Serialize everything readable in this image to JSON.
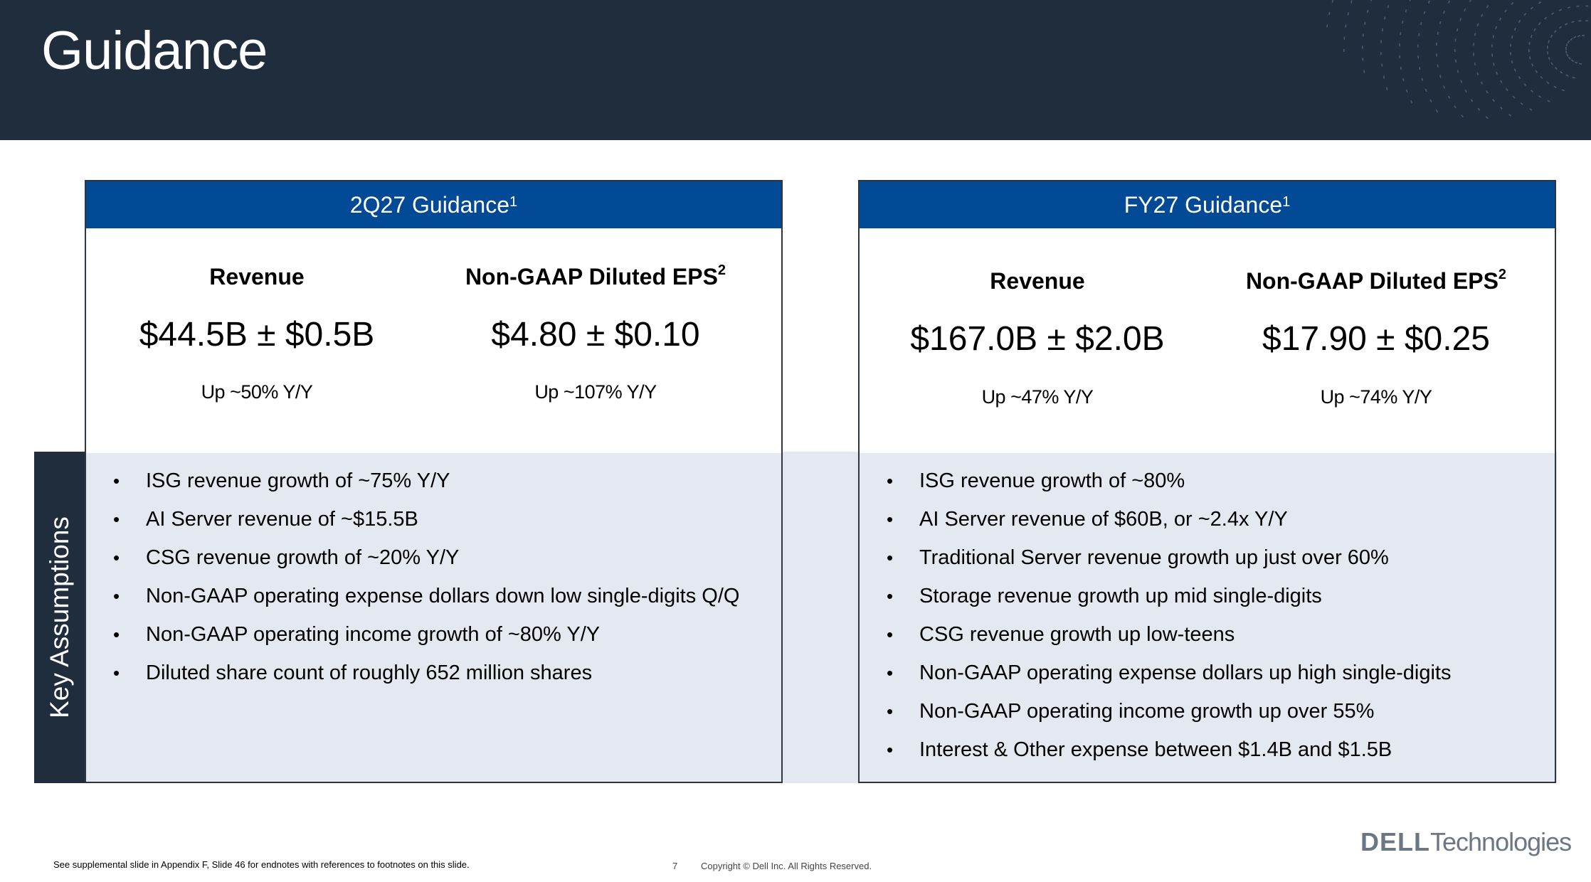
{
  "header": {
    "title": "Guidance"
  },
  "side_tab": {
    "label": "Key Assumptions"
  },
  "panels": [
    {
      "title": "2Q27 Guidance",
      "title_sup": "1",
      "metrics": [
        {
          "label": "Revenue",
          "label_sup": "",
          "value": "$44.5B ± $0.5B",
          "change": "Up ~50% Y/Y"
        },
        {
          "label": "Non-GAAP Diluted EPS",
          "label_sup": "2",
          "value": "$4.80 ± $0.10",
          "change": "Up ~107% Y/Y"
        }
      ],
      "assumptions": [
        "ISG revenue growth of ~75% Y/Y",
        "AI Server revenue of ~$15.5B",
        "CSG revenue growth of ~20% Y/Y",
        "Non-GAAP operating expense dollars down low single-digits Q/Q",
        "Non-GAAP operating income growth of ~80% Y/Y",
        "Diluted share count of roughly 652 million shares"
      ]
    },
    {
      "title": "FY27 Guidance",
      "title_sup": "1",
      "metrics": [
        {
          "label": "Revenue",
          "label_sup": "",
          "value": "$167.0B ± $2.0B",
          "change": "Up ~47% Y/Y"
        },
        {
          "label": "Non-GAAP Diluted EPS",
          "label_sup": "2",
          "value": "$17.90 ± $0.25",
          "change": "Up ~74% Y/Y"
        }
      ],
      "assumptions": [
        "ISG revenue growth of ~80%",
        "AI Server revenue of $60B, or ~2.4x Y/Y",
        "Traditional Server revenue growth up just over 60%",
        "Storage revenue growth up mid single-digits",
        "CSG revenue growth up low-teens",
        "Non-GAAP operating expense dollars up high single-digits",
        "Non-GAAP operating income growth up over 55%",
        "Interest & Other expense between $1.4B and $1.5B"
      ]
    }
  ],
  "bullet_glyph": "•",
  "footer": {
    "note": "See supplemental slide in Appendix F, Slide 46 for endnotes with references to footnotes on this slide.",
    "page_number": "7",
    "copyright": "Copyright © Dell Inc. All Rights Reserved."
  },
  "logo": {
    "brand": "DELL",
    "suffix": "Technologies"
  },
  "colors": {
    "header_bg": "#1f2d3d",
    "panel_head_bg": "#034a96",
    "assumption_band": "#e4e9f1"
  }
}
